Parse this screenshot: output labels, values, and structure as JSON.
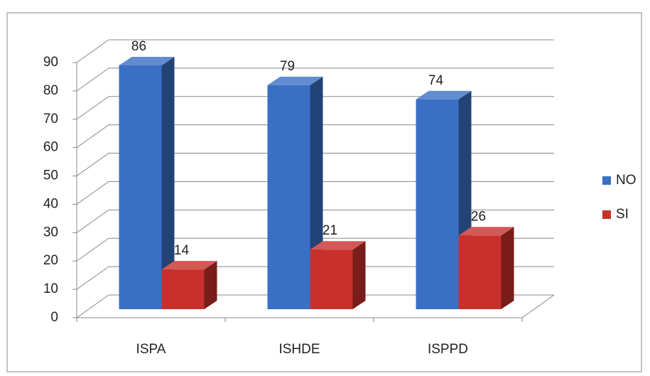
{
  "chart_data": {
    "type": "bar3d",
    "categories": [
      "ISPA",
      "ISHDE",
      "ISPPD"
    ],
    "series": [
      {
        "name": "NO",
        "color": "#3a6fc4",
        "values": [
          86,
          79,
          74
        ]
      },
      {
        "name": "SI",
        "color": "#c8302c",
        "values": [
          14,
          21,
          26
        ]
      }
    ],
    "ylim": [
      0,
      90
    ],
    "yticks": [
      0,
      10,
      20,
      30,
      40,
      50,
      60,
      70,
      80,
      90
    ],
    "grid": true,
    "legend": "right"
  }
}
